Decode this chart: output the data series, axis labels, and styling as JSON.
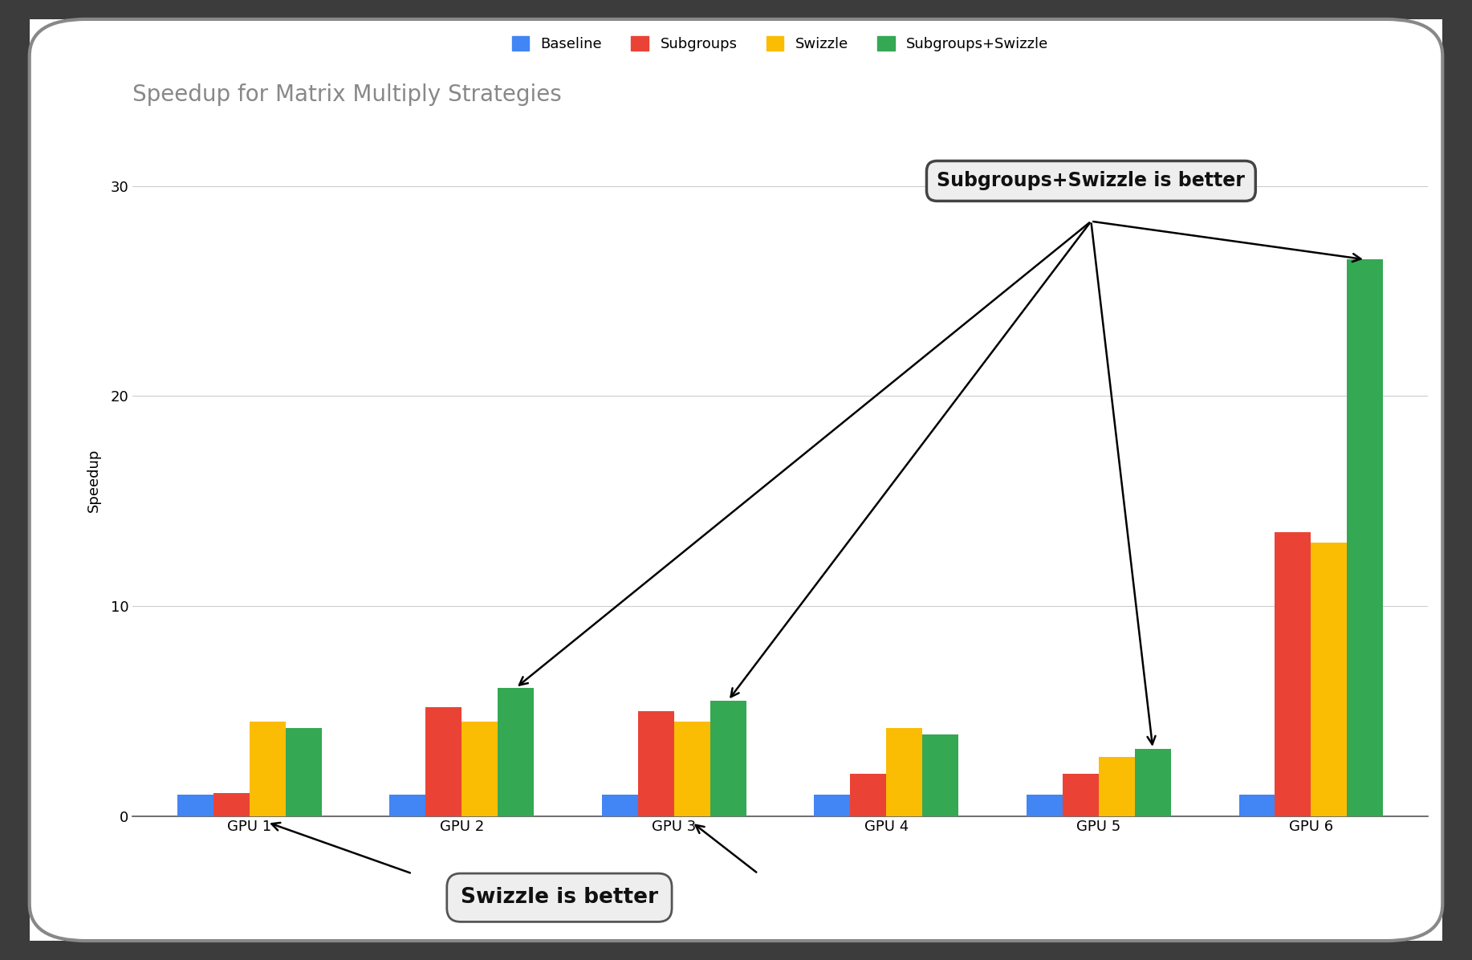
{
  "title": "Speedup for Matrix Multiply Strategies",
  "ylabel": "Speedup",
  "categories": [
    "GPU 1",
    "GPU 2",
    "GPU 3",
    "GPU 4",
    "GPU 5",
    "GPU 6"
  ],
  "series": {
    "Baseline": [
      1.0,
      1.0,
      1.0,
      1.0,
      1.0,
      1.0
    ],
    "Subgroups": [
      1.1,
      5.2,
      5.0,
      2.0,
      2.0,
      13.5
    ],
    "Swizzle": [
      4.5,
      4.5,
      4.5,
      4.2,
      2.8,
      13.0
    ],
    "Subgroups+Swizzle": [
      4.2,
      6.1,
      5.5,
      3.9,
      3.2,
      26.5
    ]
  },
  "colors": {
    "Baseline": "#4285F4",
    "Subgroups": "#EA4335",
    "Swizzle": "#FBBC04",
    "Subgroups+Swizzle": "#34A853"
  },
  "ylim": [
    0,
    32
  ],
  "yticks": [
    0,
    10,
    20,
    30
  ],
  "background_color": "#ffffff",
  "outer_bg": "#3c3c3c",
  "card_bg": "#ffffff",
  "title_fontsize": 20,
  "legend_fontsize": 13,
  "tick_fontsize": 13,
  "ylabel_fontsize": 13,
  "xlabel_fontsize": 13,
  "annotation1_text": "Subgroups+Swizzle is better",
  "annotation2_text": "Swizzle is better",
  "annotation1_fontsize": 17,
  "annotation2_fontsize": 19,
  "bar_width": 0.17
}
